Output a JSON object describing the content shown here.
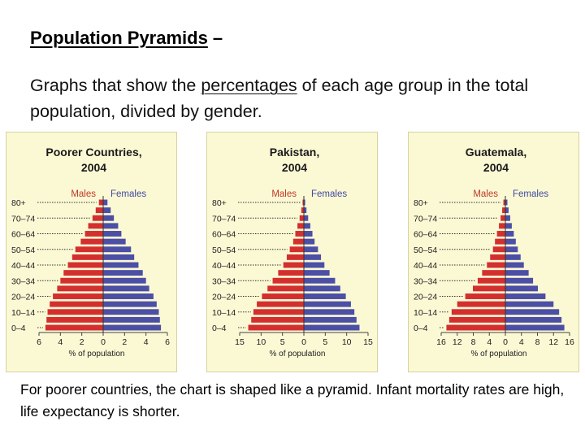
{
  "slide": {
    "title": "Population Pyramids",
    "title_dash": "–",
    "definition_before": "Graphs that show the ",
    "definition_underlined": "percentages",
    "definition_after": " of each age group in the total population, divided by gender.",
    "caption": "For poorer countries, the chart is shaped like a pyramid. Infant mortality rates are high, life expectancy is shorter."
  },
  "colors": {
    "panel_bg": "#fbf8d4",
    "male": "#d32f2f",
    "female": "#4b4fa6",
    "male_label": "#c0392b",
    "female_label": "#3f4ba0"
  },
  "chart_data": [
    {
      "type": "bar",
      "title": "Poorer Countries,\n2004",
      "legend": [
        "Males",
        "Females"
      ],
      "categories": [
        "0–4",
        "5–9",
        "10–14",
        "15–19",
        "20–24",
        "25–29",
        "30–34",
        "35–39",
        "40–44",
        "45–49",
        "50–54",
        "55–59",
        "60–64",
        "65–69",
        "70–74",
        "75–79",
        "80+"
      ],
      "ytick_labels": [
        "0–4",
        "10–14",
        "20–24",
        "30–34",
        "40–44",
        "50–54",
        "60–64",
        "70–74",
        "80+"
      ],
      "xlabel": "% of population",
      "xlim": [
        -6,
        6
      ],
      "xticks": [
        -6,
        -4,
        -2,
        0,
        2,
        4,
        6
      ],
      "xtick_labels": [
        "6",
        "4",
        "2",
        "0",
        "2",
        "4",
        "6"
      ],
      "series": [
        {
          "name": "Males",
          "values": [
            5.4,
            5.3,
            5.2,
            5.0,
            4.7,
            4.3,
            4.0,
            3.7,
            3.3,
            2.9,
            2.6,
            2.1,
            1.7,
            1.4,
            1.0,
            0.7,
            0.4
          ]
        },
        {
          "name": "Females",
          "values": [
            5.4,
            5.3,
            5.2,
            5.0,
            4.7,
            4.3,
            4.0,
            3.7,
            3.3,
            2.9,
            2.6,
            2.1,
            1.7,
            1.4,
            1.0,
            0.7,
            0.4
          ]
        }
      ]
    },
    {
      "type": "bar",
      "title": "Pakistan,\n2004",
      "legend": [
        "Males",
        "Females"
      ],
      "categories": [
        "0–4",
        "5–9",
        "10–14",
        "15–19",
        "20–24",
        "25–29",
        "30–34",
        "35–39",
        "40–44",
        "45–49",
        "50–54",
        "55–59",
        "60–64",
        "65–69",
        "70–74",
        "75–79",
        "80+"
      ],
      "ytick_labels": [
        "0–4",
        "10–14",
        "20–24",
        "30–34",
        "40–44",
        "50–54",
        "60–64",
        "70–74",
        "80+"
      ],
      "xlabel": "% of population",
      "xlim": [
        -15,
        15
      ],
      "xticks": [
        -15,
        -10,
        -5,
        0,
        5,
        10,
        15
      ],
      "xtick_labels": [
        "15",
        "10",
        "5",
        "0",
        "5",
        "10",
        "15"
      ],
      "series": [
        {
          "name": "Males",
          "values": [
            13.0,
            12.3,
            11.8,
            11.0,
            9.8,
            8.5,
            7.3,
            6.0,
            4.8,
            4.0,
            3.3,
            2.5,
            2.0,
            1.5,
            1.0,
            0.6,
            0.3
          ]
        },
        {
          "name": "Females",
          "values": [
            13.0,
            12.3,
            11.8,
            11.0,
            9.8,
            8.5,
            7.3,
            6.0,
            4.8,
            4.0,
            3.3,
            2.5,
            2.0,
            1.5,
            1.0,
            0.6,
            0.3
          ]
        }
      ]
    },
    {
      "type": "bar",
      "title": "Guatemala,\n2004",
      "legend": [
        "Males",
        "Females"
      ],
      "categories": [
        "0–4",
        "5–9",
        "10–14",
        "15–19",
        "20–24",
        "25–29",
        "30–34",
        "35–39",
        "40–44",
        "45–49",
        "50–54",
        "55–59",
        "60–64",
        "65–69",
        "70–74",
        "75–79",
        "80+"
      ],
      "ytick_labels": [
        "0–4",
        "10–14",
        "20–24",
        "30–34",
        "40–44",
        "50–54",
        "60–64",
        "70–74",
        "80+"
      ],
      "xlabel": "% of population",
      "xlim": [
        -16,
        16
      ],
      "xticks": [
        -16,
        -12,
        -8,
        -4,
        0,
        4,
        8,
        12,
        16
      ],
      "xtick_labels": [
        "16",
        "12",
        "8",
        "4",
        "0",
        "4",
        "8",
        "12",
        "16"
      ],
      "series": [
        {
          "name": "Males",
          "values": [
            14.7,
            14.0,
            13.4,
            12.0,
            10.0,
            8.1,
            6.9,
            5.8,
            4.6,
            3.8,
            3.1,
            2.6,
            2.1,
            1.6,
            1.2,
            0.8,
            0.5
          ]
        },
        {
          "name": "Females",
          "values": [
            14.7,
            14.0,
            13.4,
            12.0,
            10.0,
            8.1,
            6.9,
            5.8,
            4.6,
            3.8,
            3.1,
            2.6,
            2.1,
            1.6,
            1.2,
            0.8,
            0.5
          ]
        }
      ]
    }
  ]
}
